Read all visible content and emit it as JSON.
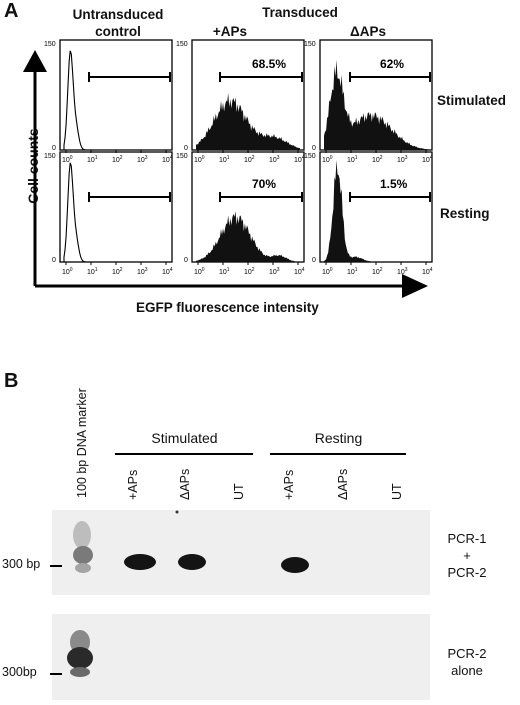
{
  "panel_a": {
    "letter": "A",
    "header_untransduced": "Untransduced control",
    "header_transduced": "Transduced",
    "header_plus": "+APs",
    "header_delta": "ΔAPs",
    "row_stimulated": "Stimulated",
    "row_resting": "Resting",
    "y_axis": "Cell counts",
    "x_axis": "EGFP fluorescence intensity",
    "y_ticks": [
      "150",
      "0"
    ],
    "x_tick_base": "10",
    "x_tick_exps": [
      "0",
      "1",
      "2",
      "3",
      "4"
    ],
    "percentages": {
      "stim_plus": "68.5%",
      "stim_delta": "62%",
      "rest_plus": "70%",
      "rest_delta": "1.5%"
    },
    "histogram_fill": "#111111"
  },
  "panel_b": {
    "letter": "B",
    "marker_label": "100 bp DNA marker",
    "group_stimulated": "Stimulated",
    "group_resting": "Resting",
    "lanes": [
      "+APs",
      "ΔAPs",
      "UT",
      "+APs",
      "ΔAPs",
      "UT"
    ],
    "gel1_label_line1": "PCR-1",
    "gel1_label_line2": "+",
    "gel1_label_line3": "PCR-2",
    "gel2_label_line1": "PCR-2",
    "gel2_label_line2": "alone",
    "bp_label_1": "300 bp",
    "bp_label_2": "300bp"
  }
}
